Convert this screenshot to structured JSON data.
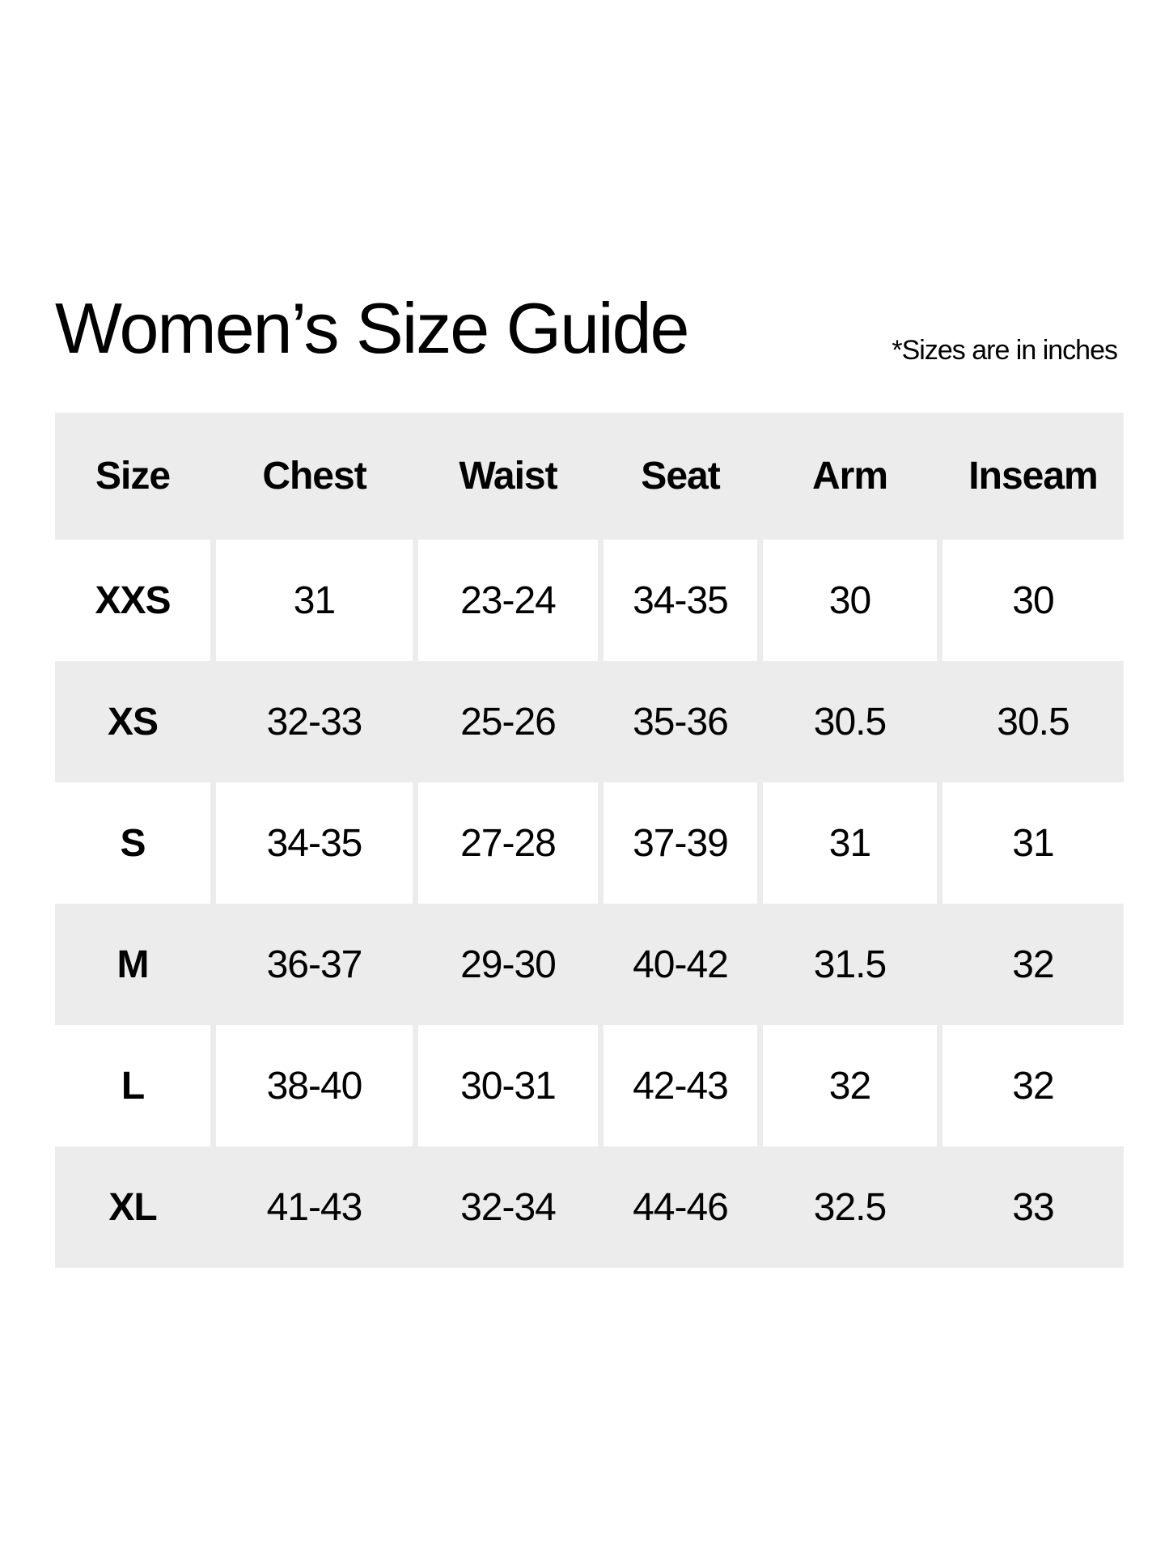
{
  "title": "Women’s Size Guide",
  "note": "*Sizes are in inches",
  "colors": {
    "stripe": "#ececec",
    "white": "#ffffff",
    "text": "#000000"
  },
  "table": {
    "headers": [
      "Size",
      "Chest",
      "Waist",
      "Seat",
      "Arm",
      "Inseam"
    ],
    "rows": [
      [
        "XXS",
        "31",
        "23-24",
        "34-35",
        "30",
        "30"
      ],
      [
        "XS",
        "32-33",
        "25-26",
        "35-36",
        "30.5",
        "30.5"
      ],
      [
        "S",
        "34-35",
        "27-28",
        "37-39",
        "31",
        "31"
      ],
      [
        "M",
        "36-37",
        "29-30",
        "40-42",
        "31.5",
        "32"
      ],
      [
        "L",
        "38-40",
        "30-31",
        "42-43",
        "32",
        "32"
      ],
      [
        "XL",
        "41-43",
        "32-34",
        "44-46",
        "32.5",
        "33"
      ]
    ]
  }
}
